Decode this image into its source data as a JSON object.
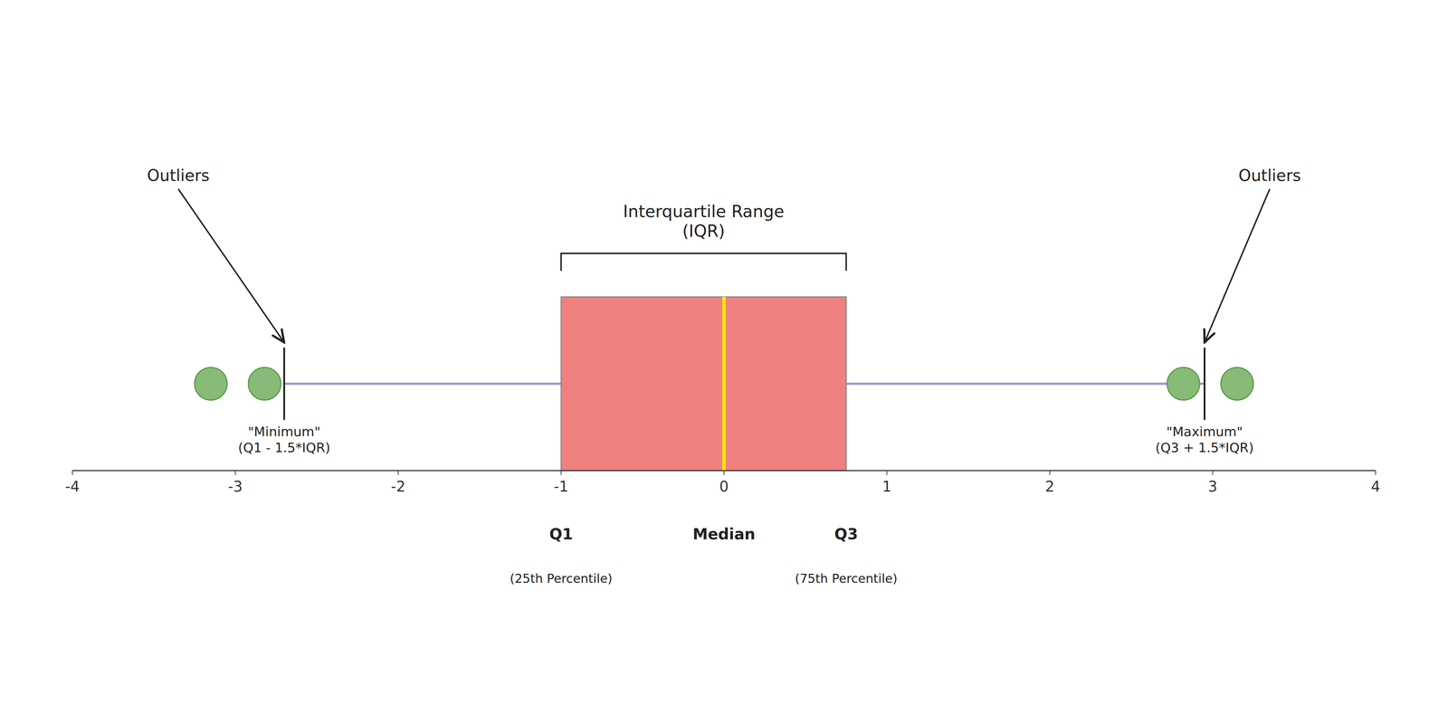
{
  "chart_data": {
    "type": "box",
    "orientation": "horizontal",
    "box": {
      "q1": -1.0,
      "median": 0.0,
      "q3": 0.75,
      "whisker_min": -2.7,
      "whisker_max": 2.95,
      "outliers": [
        -3.15,
        -2.82,
        2.82,
        3.15
      ]
    },
    "xlim": [
      -4,
      4
    ],
    "xticks": [
      -4,
      -3,
      -2,
      -1,
      0,
      1,
      2,
      3,
      4
    ],
    "tick_labels": "x",
    "colors": {
      "whisker": "#9999dd",
      "box": "#f08080",
      "box_edge": "#888888",
      "median": "#ffee00",
      "outlier": "#88bb77",
      "outlier_edge": "#559944"
    },
    "annotations": {
      "iqr": "Interquartile Range\n(IQR)",
      "outliers": [
        "Outliers",
        "Outliers"
      ],
      "minimum": "\"Minimum\"\n(Q1 - 1.5*IQR)",
      "maximum": "\"Maximum\"\n(Q3 + 1.5*IQR)",
      "q1": "Q1",
      "median": "Median",
      "q3": "Q3",
      "q1_sub": "(25th Percentile)",
      "q3_sub": "(75th Percentile)"
    }
  }
}
